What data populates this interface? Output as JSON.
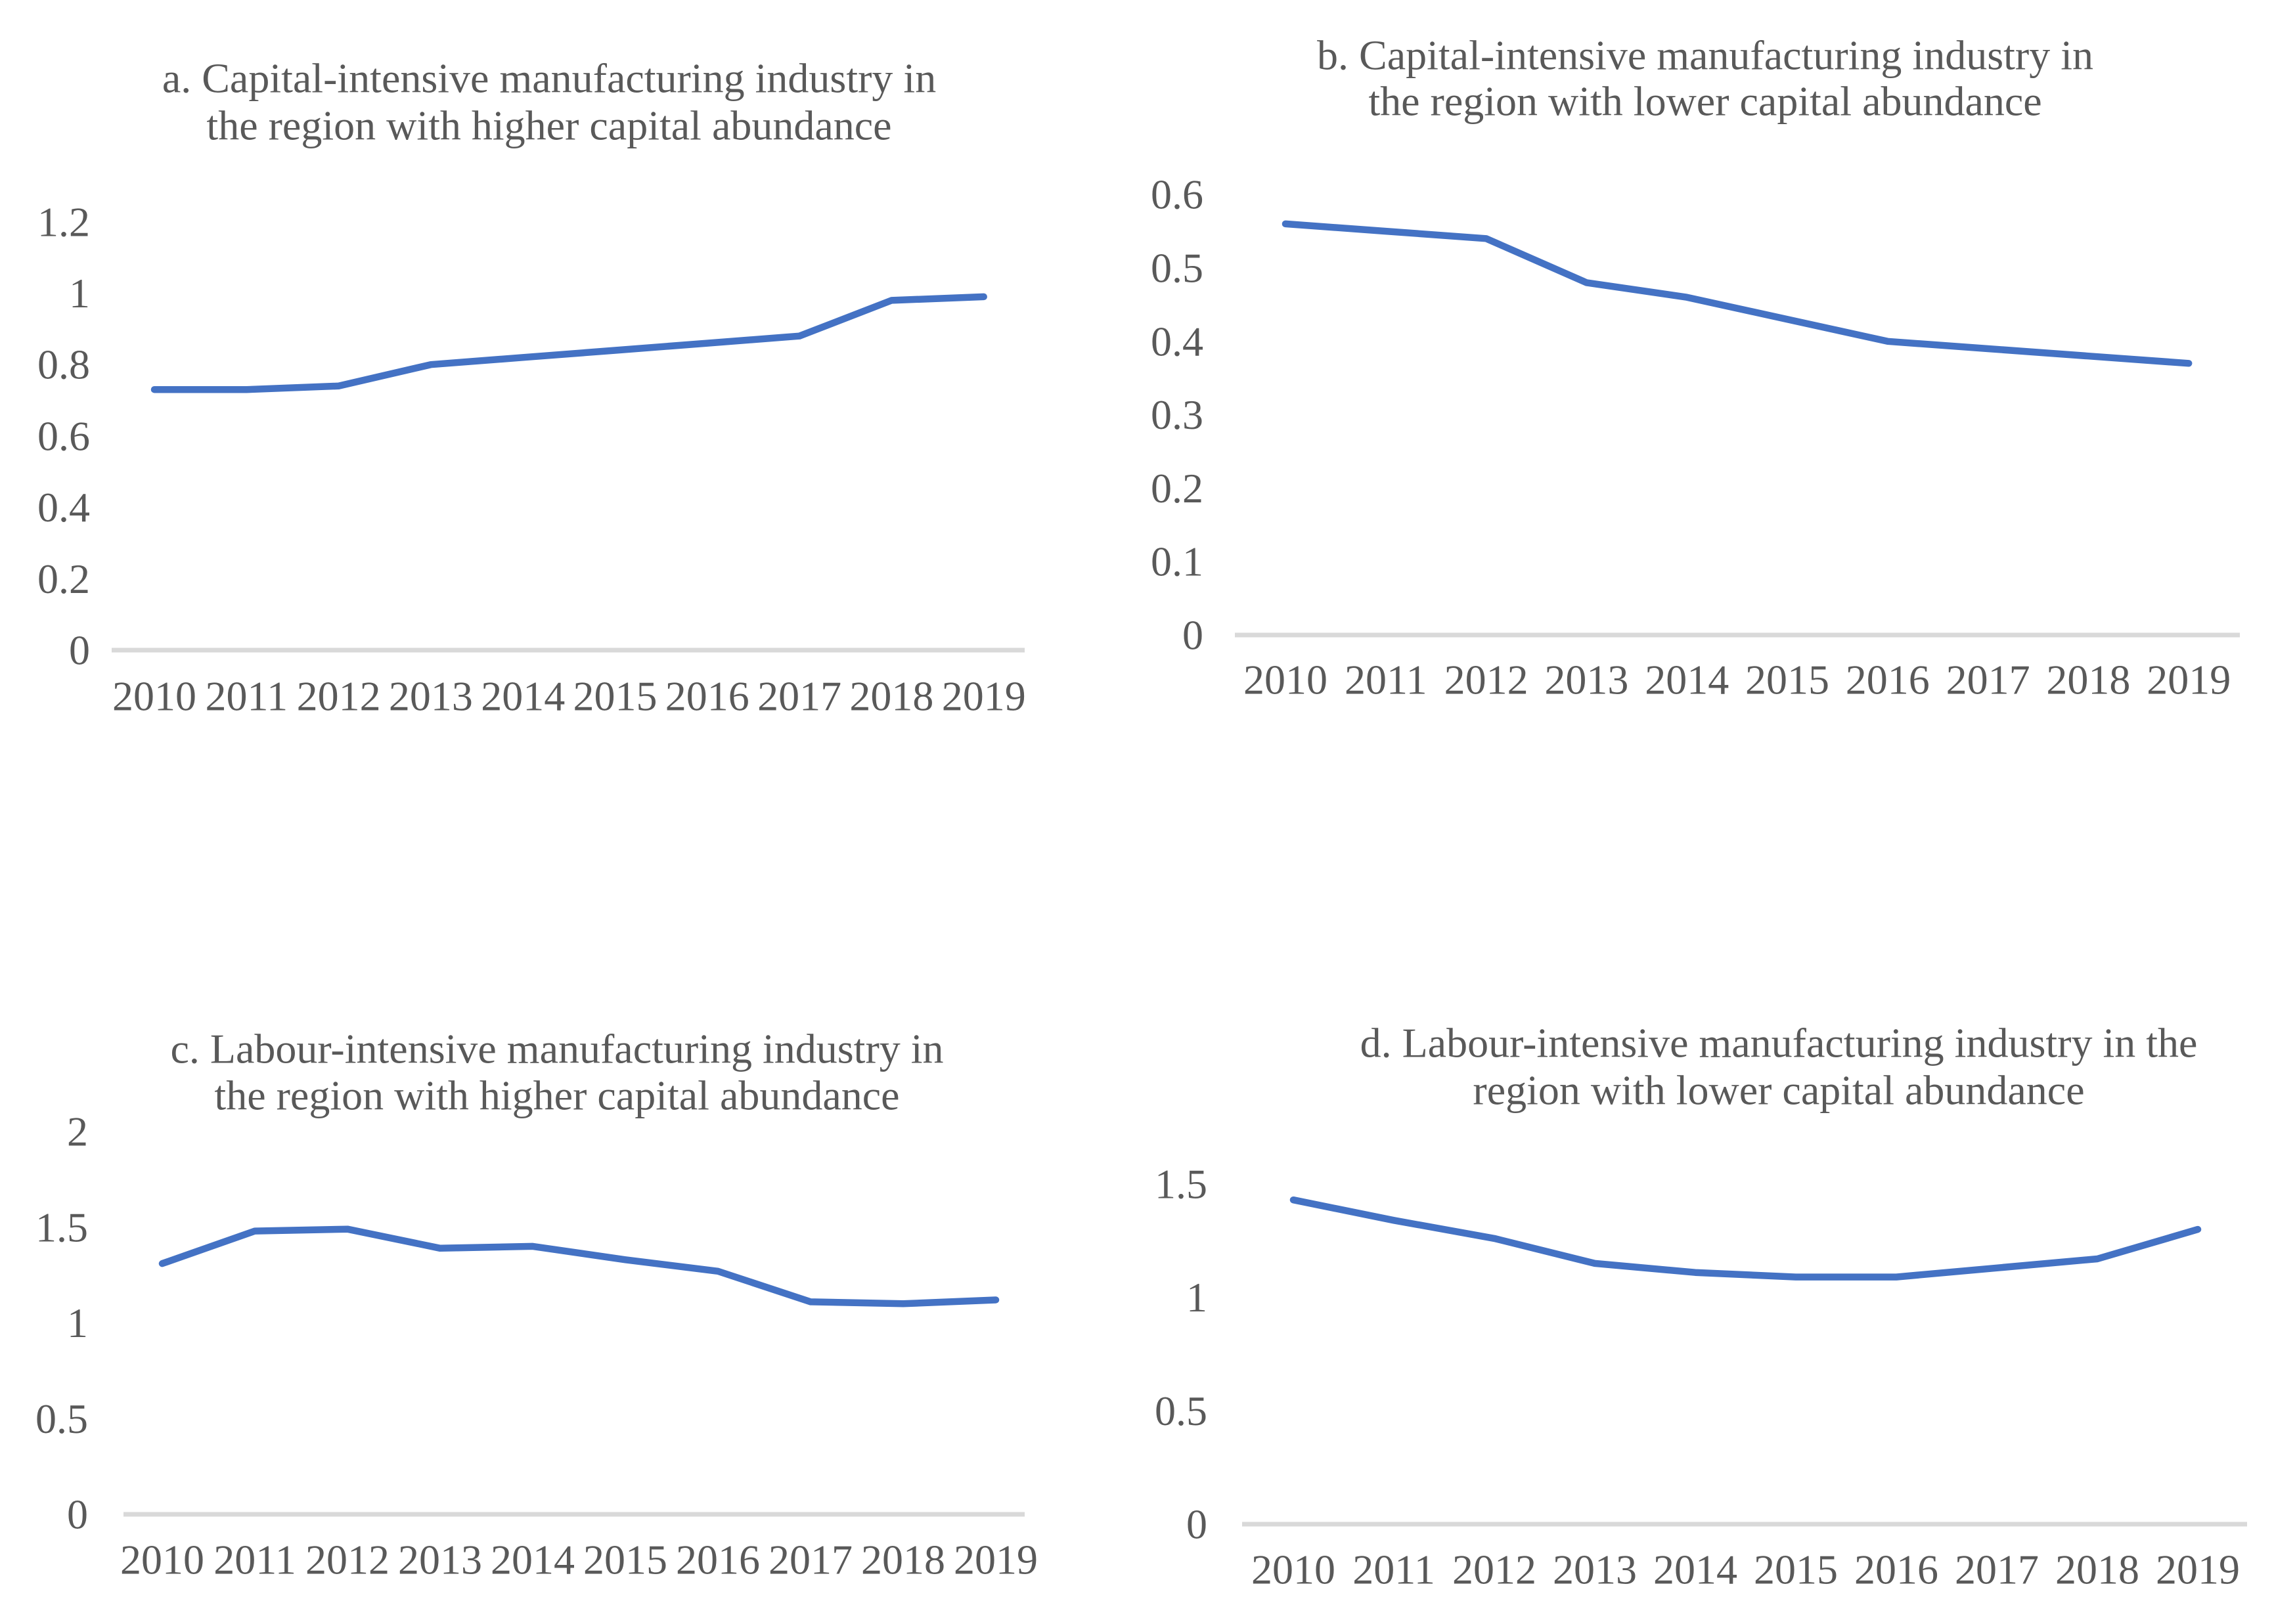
{
  "theme": {
    "line_color": "#4472C4",
    "axis_color": "#D9D9D9",
    "text_color": "#595959",
    "background": "#FFFFFF"
  },
  "chart_data": [
    {
      "id": "a",
      "type": "line",
      "title": "a. Capital-intensive manufacturing industry in the region with higher capital abundance",
      "title_lines": [
        "a. Capital-intensive manufacturing industry in",
        "the region with higher capital abundance"
      ],
      "categories": [
        "2010",
        "2011",
        "2012",
        "2013",
        "2014",
        "2015",
        "2016",
        "2017",
        "2018",
        "2019"
      ],
      "values": [
        0.73,
        0.73,
        0.74,
        0.8,
        0.82,
        0.84,
        0.86,
        0.88,
        0.98,
        0.99
      ],
      "ylim": [
        0,
        1.2
      ],
      "yticks": [
        1.2,
        1,
        0.8,
        0.6,
        0.4,
        0.2,
        0
      ],
      "ytick_labels": [
        "1.2",
        "1",
        "0.8",
        "0.6",
        "0.4",
        "0.2",
        "0"
      ],
      "grid": false,
      "legend": "none"
    },
    {
      "id": "b",
      "type": "line",
      "title": "b. Capital-intensive manufacturing industry in the region with lower capital abundance",
      "title_lines": [
        "b. Capital-intensive manufacturing industry in",
        "the region with lower capital abundance"
      ],
      "categories": [
        "2010",
        "2011",
        "2012",
        "2013",
        "2014",
        "2015",
        "2016",
        "2017",
        "2018",
        "2019"
      ],
      "values": [
        0.56,
        0.55,
        0.54,
        0.48,
        0.46,
        0.43,
        0.4,
        0.39,
        0.38,
        0.37
      ],
      "ylim": [
        0,
        0.6
      ],
      "yticks": [
        0.6,
        0.5,
        0.4,
        0.3,
        0.2,
        0.1,
        0
      ],
      "ytick_labels": [
        "0.6",
        "0.5",
        "0.4",
        "0.3",
        "0.2",
        "0.1",
        "0"
      ],
      "grid": false,
      "legend": "none"
    },
    {
      "id": "c",
      "type": "line",
      "title": "c. Labour-intensive manufacturing industry in the region with higher capital abundance",
      "title_lines": [
        "c. Labour-intensive manufacturing industry in",
        "the region with higher capital abundance"
      ],
      "categories": [
        "2010",
        "2011",
        "2012",
        "2013",
        "2014",
        "2015",
        "2016",
        "2017",
        "2018",
        "2019"
      ],
      "values": [
        1.31,
        1.48,
        1.49,
        1.39,
        1.4,
        1.33,
        1.27,
        1.11,
        1.1,
        1.12
      ],
      "ylim": [
        0,
        2
      ],
      "yticks": [
        2,
        1.5,
        1,
        0.5,
        0
      ],
      "ytick_labels": [
        "2",
        "1.5",
        "1",
        "0.5",
        "0"
      ],
      "grid": false,
      "legend": "none"
    },
    {
      "id": "d",
      "type": "line",
      "title": "d. Labour-intensive manufacturing industry in the region with lower capital abundance",
      "title_lines": [
        "d. Labour-intensive manufacturing industry in the",
        "region with lower capital abundance"
      ],
      "categories": [
        "2010",
        "2011",
        "2012",
        "2013",
        "2014",
        "2015",
        "2016",
        "2017",
        "2018",
        "2019"
      ],
      "values": [
        1.43,
        1.34,
        1.26,
        1.15,
        1.11,
        1.09,
        1.09,
        1.13,
        1.17,
        1.3
      ],
      "ylim": [
        0,
        1.5
      ],
      "yticks": [
        1.5,
        1,
        0.5,
        0
      ],
      "ytick_labels": [
        "1.5",
        "1",
        "0.5",
        "0"
      ],
      "grid": false,
      "legend": "none"
    }
  ]
}
